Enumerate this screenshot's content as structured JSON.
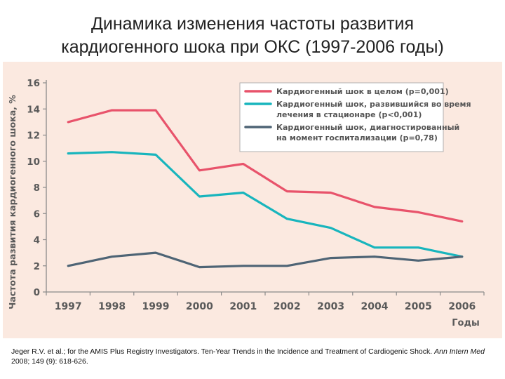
{
  "slide": {
    "title_line1": "Динамика изменения частоты развития",
    "title_line2": "кардиогенного шока при ОКС (1997-2006 годы)"
  },
  "citation": {
    "authors": "Jeger R.V. et al.; for the AMIS Plus Registry Investigators. Ten-Year Trends in the Incidence and Treatment of Cardiogenic Shock.",
    "journal": "Ann Intern Med",
    "details": "2008; 149 (9): 618-626."
  },
  "chart_data": {
    "type": "line",
    "ylabel": "Частота развития кардиогенного шока, %",
    "xlabel": "Годы",
    "ylim": [
      0,
      16
    ],
    "yticks": [
      0,
      2,
      4,
      6,
      8,
      10,
      12,
      14,
      16
    ],
    "x": [
      "1997",
      "1998",
      "1999",
      "2000",
      "2001",
      "2002",
      "2003",
      "2004",
      "2005",
      "2006"
    ],
    "grid": false,
    "legend_position": "top-right",
    "series": [
      {
        "name_lines": [
          "Кардиогенный шок в целом (p=0,001)"
        ],
        "color": "#e8536b",
        "values": [
          13.0,
          13.9,
          13.9,
          9.3,
          9.8,
          7.7,
          7.6,
          6.5,
          6.1,
          5.4
        ]
      },
      {
        "name_lines": [
          "Кардиогенный шок, развившийся во время",
          "лечения в стационаре (p<0,001)"
        ],
        "color": "#18b5bd",
        "values": [
          10.6,
          10.7,
          10.5,
          7.3,
          7.6,
          5.6,
          4.9,
          3.4,
          3.4,
          2.7
        ]
      },
      {
        "name_lines": [
          "Кардиогенный шок, диагностированный",
          "на момент госпитализации (p=0,78)"
        ],
        "color": "#4e6475",
        "values": [
          2.0,
          2.7,
          3.0,
          1.9,
          2.0,
          2.0,
          2.6,
          2.7,
          2.4,
          2.7
        ]
      }
    ]
  }
}
